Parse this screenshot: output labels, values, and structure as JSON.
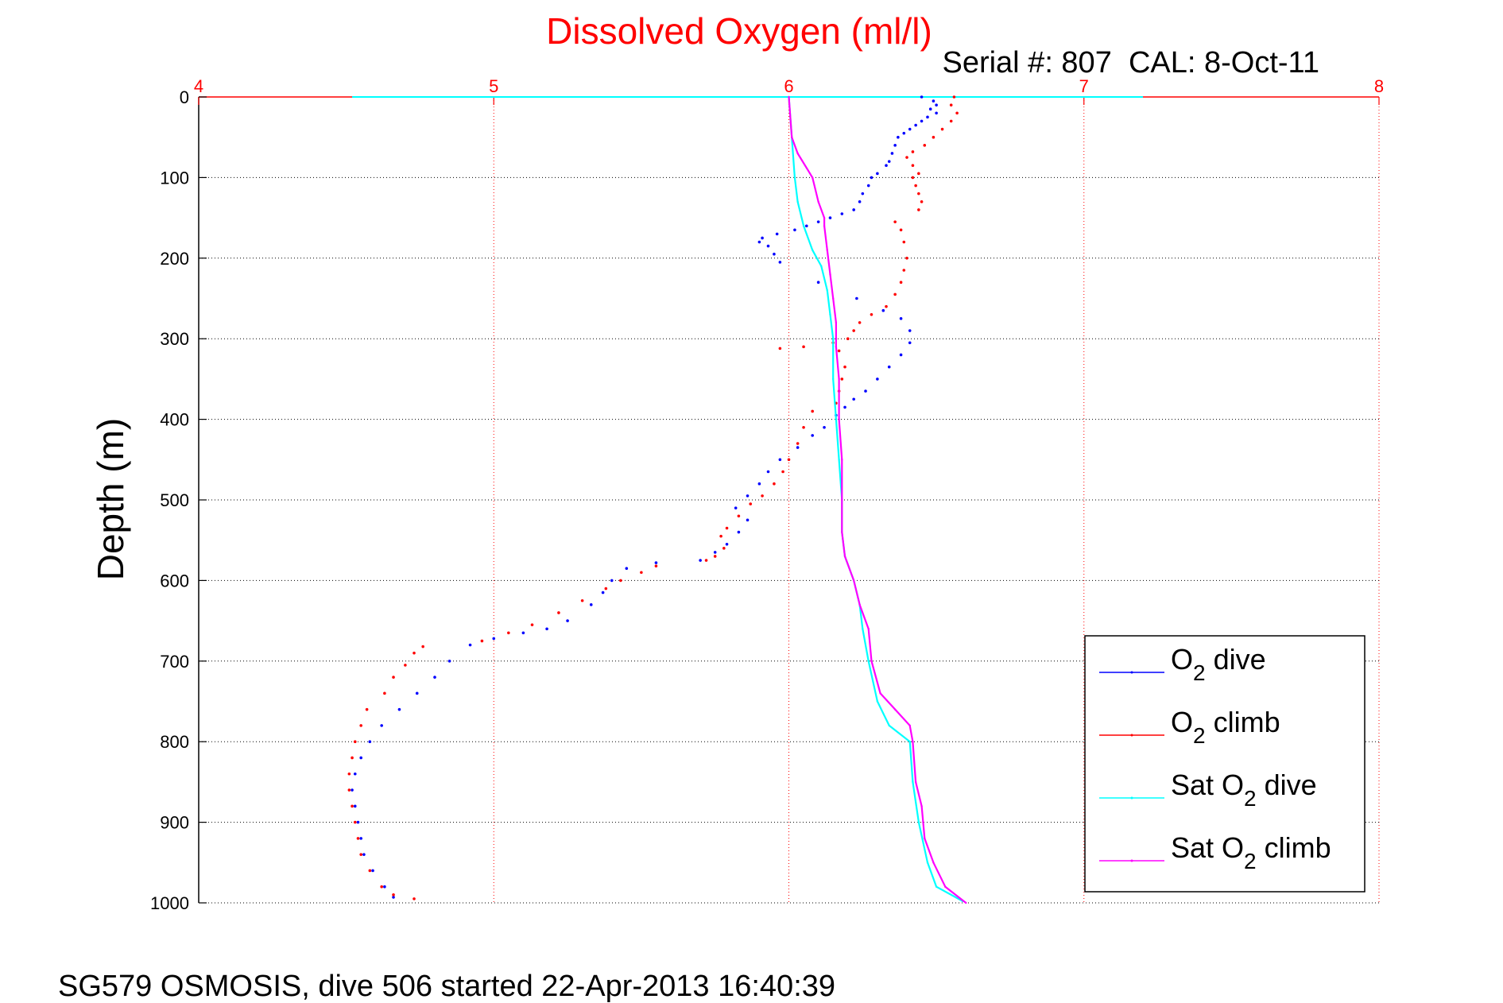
{
  "chart_data": {
    "type": "scatter",
    "title": "Dissolved Oxygen (ml/l)",
    "subtitle": "Serial #: 807  CAL: 8-Oct-11",
    "footer": "SG579 OSMOSIS, dive 506 started 22-Apr-2013 16:40:39",
    "xlabel": "",
    "ylabel": "Depth (m)",
    "x_axis_position": "top",
    "xlim": [
      4,
      8
    ],
    "ylim": [
      0,
      1000
    ],
    "y_reversed": true,
    "grid": true,
    "xticks": [
      "4",
      "5",
      "6",
      "7",
      "8"
    ],
    "yticks": [
      "0",
      "100",
      "200",
      "300",
      "400",
      "500",
      "600",
      "700",
      "800",
      "900",
      "1000"
    ],
    "colors": {
      "title": "#ff0000",
      "x_axis": "#ff0000",
      "x_grid": "#ff0000",
      "y_grid": "#000000",
      "frame": "#000000"
    },
    "legend": {
      "position": "bottom-right",
      "entries": [
        {
          "base": "O",
          "sub": "2",
          "rest": " dive"
        },
        {
          "base": "O",
          "sub": "2",
          "rest": " climb"
        },
        {
          "base": "Sat O",
          "sub": "2",
          "rest": " dive"
        },
        {
          "base": "Sat O",
          "sub": "2",
          "rest": " climb"
        }
      ]
    },
    "series": [
      {
        "name": "O2 dive",
        "color": "#0000ff",
        "style": "dots",
        "points": [
          [
            6.45,
            0
          ],
          [
            6.49,
            5
          ],
          [
            6.5,
            10
          ],
          [
            6.48,
            15
          ],
          [
            6.5,
            20
          ],
          [
            6.47,
            25
          ],
          [
            6.45,
            30
          ],
          [
            6.43,
            35
          ],
          [
            6.41,
            40
          ],
          [
            6.39,
            45
          ],
          [
            6.37,
            50
          ],
          [
            6.36,
            60
          ],
          [
            6.35,
            70
          ],
          [
            6.34,
            80
          ],
          [
            6.33,
            85
          ],
          [
            6.3,
            95
          ],
          [
            6.28,
            100
          ],
          [
            6.27,
            110
          ],
          [
            6.25,
            120
          ],
          [
            6.24,
            130
          ],
          [
            6.22,
            140
          ],
          [
            6.18,
            145
          ],
          [
            6.14,
            150
          ],
          [
            6.1,
            155
          ],
          [
            6.06,
            160
          ],
          [
            6.02,
            165
          ],
          [
            5.96,
            170
          ],
          [
            5.91,
            175
          ],
          [
            5.9,
            180
          ],
          [
            5.93,
            185
          ],
          [
            5.95,
            195
          ],
          [
            5.97,
            205
          ],
          [
            6.1,
            230
          ],
          [
            6.23,
            250
          ],
          [
            6.32,
            265
          ],
          [
            6.38,
            275
          ],
          [
            6.41,
            290
          ],
          [
            6.41,
            305
          ],
          [
            6.38,
            320
          ],
          [
            6.34,
            335
          ],
          [
            6.3,
            350
          ],
          [
            6.26,
            365
          ],
          [
            6.22,
            375
          ],
          [
            6.19,
            385
          ],
          [
            6.16,
            395
          ],
          [
            6.12,
            410
          ],
          [
            6.08,
            420
          ],
          [
            6.03,
            435
          ],
          [
            5.97,
            450
          ],
          [
            5.93,
            465
          ],
          [
            5.9,
            480
          ],
          [
            5.86,
            495
          ],
          [
            5.82,
            510
          ],
          [
            5.86,
            525
          ],
          [
            5.83,
            540
          ],
          [
            5.79,
            555
          ],
          [
            5.75,
            565
          ],
          [
            5.7,
            575
          ],
          [
            5.55,
            578
          ],
          [
            5.45,
            585
          ],
          [
            5.4,
            600
          ],
          [
            5.37,
            615
          ],
          [
            5.33,
            630
          ],
          [
            5.25,
            650
          ],
          [
            5.18,
            660
          ],
          [
            5.1,
            665
          ],
          [
            5.0,
            672
          ],
          [
            4.92,
            680
          ],
          [
            4.85,
            700
          ],
          [
            4.8,
            720
          ],
          [
            4.74,
            740
          ],
          [
            4.68,
            760
          ],
          [
            4.62,
            780
          ],
          [
            4.58,
            800
          ],
          [
            4.55,
            820
          ],
          [
            4.53,
            840
          ],
          [
            4.52,
            860
          ],
          [
            4.53,
            880
          ],
          [
            4.54,
            900
          ],
          [
            4.55,
            920
          ],
          [
            4.56,
            940
          ],
          [
            4.59,
            960
          ],
          [
            4.63,
            980
          ],
          [
            4.66,
            993
          ]
        ]
      },
      {
        "name": "O2 climb",
        "color": "#ff0000",
        "style": "dots",
        "points": [
          [
            6.56,
            0
          ],
          [
            6.55,
            10
          ],
          [
            6.57,
            20
          ],
          [
            6.55,
            30
          ],
          [
            6.52,
            40
          ],
          [
            6.49,
            50
          ],
          [
            6.46,
            60
          ],
          [
            6.42,
            68
          ],
          [
            6.4,
            75
          ],
          [
            6.42,
            85
          ],
          [
            6.44,
            95
          ],
          [
            6.42,
            100
          ],
          [
            6.43,
            110
          ],
          [
            6.44,
            120
          ],
          [
            6.45,
            130
          ],
          [
            6.44,
            140
          ],
          [
            6.36,
            155
          ],
          [
            6.38,
            165
          ],
          [
            6.39,
            180
          ],
          [
            6.4,
            200
          ],
          [
            6.39,
            215
          ],
          [
            6.38,
            230
          ],
          [
            6.36,
            245
          ],
          [
            6.33,
            260
          ],
          [
            6.28,
            270
          ],
          [
            6.24,
            280
          ],
          [
            6.22,
            290
          ],
          [
            6.2,
            300
          ],
          [
            6.15,
            305
          ],
          [
            6.05,
            310
          ],
          [
            5.97,
            312
          ],
          [
            6.17,
            315
          ],
          [
            6.19,
            335
          ],
          [
            6.18,
            350
          ],
          [
            6.17,
            365
          ],
          [
            6.16,
            380
          ],
          [
            6.08,
            390
          ],
          [
            6.05,
            410
          ],
          [
            6.03,
            430
          ],
          [
            6.0,
            450
          ],
          [
            5.98,
            465
          ],
          [
            5.95,
            480
          ],
          [
            5.91,
            495
          ],
          [
            5.87,
            505
          ],
          [
            5.83,
            520
          ],
          [
            5.79,
            535
          ],
          [
            5.77,
            545
          ],
          [
            5.78,
            560
          ],
          [
            5.75,
            570
          ],
          [
            5.72,
            575
          ],
          [
            5.55,
            582
          ],
          [
            5.5,
            590
          ],
          [
            5.43,
            600
          ],
          [
            5.38,
            610
          ],
          [
            5.3,
            625
          ],
          [
            5.22,
            640
          ],
          [
            5.13,
            655
          ],
          [
            5.05,
            665
          ],
          [
            4.96,
            675
          ],
          [
            4.76,
            682
          ],
          [
            4.73,
            690
          ],
          [
            4.7,
            705
          ],
          [
            4.66,
            720
          ],
          [
            4.63,
            740
          ],
          [
            4.57,
            760
          ],
          [
            4.55,
            780
          ],
          [
            4.53,
            800
          ],
          [
            4.52,
            820
          ],
          [
            4.51,
            840
          ],
          [
            4.51,
            860
          ],
          [
            4.52,
            880
          ],
          [
            4.53,
            900
          ],
          [
            4.54,
            920
          ],
          [
            4.55,
            940
          ],
          [
            4.58,
            960
          ],
          [
            4.62,
            980
          ],
          [
            4.66,
            990
          ],
          [
            4.73,
            995
          ]
        ]
      },
      {
        "name": "Sat O2 dive",
        "color": "#00ffff",
        "style": "line",
        "points": [
          [
            6.0,
            0
          ],
          [
            6.01,
            50
          ],
          [
            6.02,
            100
          ],
          [
            6.03,
            130
          ],
          [
            6.05,
            160
          ],
          [
            6.08,
            190
          ],
          [
            6.11,
            210
          ],
          [
            6.13,
            240
          ],
          [
            6.14,
            270
          ],
          [
            6.15,
            300
          ],
          [
            6.15,
            350
          ],
          [
            6.16,
            400
          ],
          [
            6.17,
            450
          ],
          [
            6.18,
            500
          ],
          [
            6.18,
            540
          ],
          [
            6.19,
            570
          ],
          [
            6.22,
            600
          ],
          [
            6.24,
            630
          ],
          [
            6.25,
            660
          ],
          [
            6.27,
            700
          ],
          [
            6.3,
            750
          ],
          [
            6.34,
            780
          ],
          [
            6.41,
            800
          ],
          [
            6.42,
            850
          ],
          [
            6.44,
            900
          ],
          [
            6.47,
            950
          ],
          [
            6.5,
            980
          ],
          [
            6.59,
            998
          ]
        ]
      },
      {
        "name": "Sat O2 climb",
        "color": "#ff00ff",
        "style": "line",
        "points": [
          [
            6.0,
            0
          ],
          [
            6.01,
            50
          ],
          [
            6.03,
            70
          ],
          [
            6.08,
            100
          ],
          [
            6.1,
            130
          ],
          [
            6.12,
            150
          ],
          [
            6.12,
            160
          ],
          [
            6.13,
            190
          ],
          [
            6.14,
            220
          ],
          [
            6.15,
            250
          ],
          [
            6.16,
            280
          ],
          [
            6.16,
            310
          ],
          [
            6.17,
            350
          ],
          [
            6.17,
            400
          ],
          [
            6.18,
            450
          ],
          [
            6.18,
            500
          ],
          [
            6.18,
            540
          ],
          [
            6.19,
            570
          ],
          [
            6.22,
            600
          ],
          [
            6.24,
            630
          ],
          [
            6.27,
            660
          ],
          [
            6.28,
            700
          ],
          [
            6.31,
            740
          ],
          [
            6.36,
            760
          ],
          [
            6.41,
            780
          ],
          [
            6.42,
            800
          ],
          [
            6.43,
            850
          ],
          [
            6.45,
            880
          ],
          [
            6.46,
            920
          ],
          [
            6.49,
            950
          ],
          [
            6.53,
            980
          ],
          [
            6.6,
            1000
          ]
        ]
      }
    ]
  }
}
